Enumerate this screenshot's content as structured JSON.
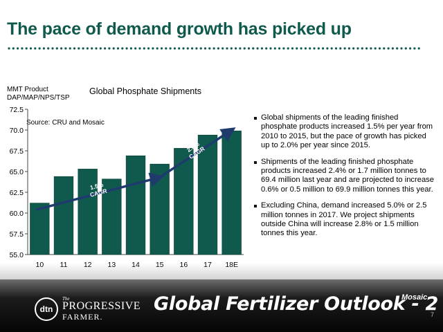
{
  "slide": {
    "title": "The pace of demand growth has picked up",
    "accent_color": "#0f5a4c"
  },
  "chart_data": {
    "type": "bar",
    "title": "Global Phosphate Shipments",
    "ylabel_lines": [
      "MMT Product",
      "DAP/MAP/NPS/TSP"
    ],
    "source": "Source: CRU and Mosaic",
    "categories": [
      "10",
      "11",
      "12",
      "13",
      "14",
      "15",
      "16",
      "17",
      "18E"
    ],
    "values": [
      61.2,
      64.4,
      65.3,
      64.1,
      66.9,
      65.9,
      67.8,
      69.4,
      69.9
    ],
    "ylim": [
      55.0,
      72.5
    ],
    "yticks": [
      "55.0",
      "57.5",
      "60.0",
      "62.5",
      "65.0",
      "67.5",
      "70.0",
      "72.5"
    ],
    "grid": false,
    "bar_color": "#0f5a4c",
    "annotations": [
      {
        "lines": [
          "1.5%",
          "CAGR"
        ],
        "from_category": "10",
        "to_category": "15",
        "from_value": 60.4,
        "to_value": 64.3
      },
      {
        "lines": [
          "2.0%",
          "CAGR"
        ],
        "from_category": "15",
        "to_category": "18E",
        "from_value": 64.3,
        "to_value": 70.0
      }
    ]
  },
  "bullets": [
    "Global shipments of the leading finished phosphate products increased 1.5% per year from 2010 to 2015, but the pace of growth has picked up to 2.0% per year since 2015.",
    "Shipments of the leading finished phosphate products increased 2.4% or 1.7 million tonnes to 69.4 million last year and are projected to increase 0.6% or 0.5 million to 69.9 million tonnes this year.",
    "Excluding China, demand increased 5.0% or 2.5 million tonnes in 2017.  We project shipments outside China will increase 2.8% or 1.5 million tonnes this year."
  ],
  "footer": {
    "logo_dtn": "dtn",
    "logo_the": "The",
    "logo_line1": "PROGRESSIVE",
    "logo_line2": "FARMER.",
    "title": "Global Fertilizer Outlook - 2",
    "mosaic": "Mosaic",
    "page_number": "7"
  }
}
